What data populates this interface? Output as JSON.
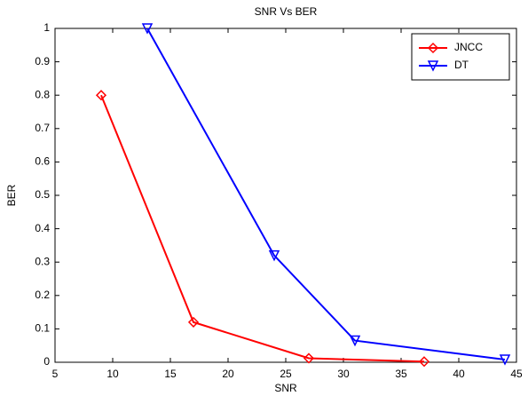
{
  "chart_data": {
    "type": "line",
    "title": "SNR Vs BER",
    "x_label": "SNR",
    "y_label": "BER",
    "series": [
      {
        "name": "JNCC",
        "color": "#ff0000",
        "marker": "diamond",
        "x": [
          9,
          17,
          27,
          37
        ],
        "values": [
          0.8,
          0.12,
          0.012,
          0.002
        ]
      },
      {
        "name": "DT",
        "color": "#0000ff",
        "marker": "triangle-down",
        "x": [
          13,
          24,
          31,
          44
        ],
        "values": [
          1,
          0.32,
          0.065,
          0.008
        ]
      }
    ],
    "xlim": [
      5,
      45
    ],
    "xticks": [
      5,
      10,
      15,
      20,
      25,
      30,
      35,
      40,
      45
    ],
    "ylim": [
      0,
      1
    ],
    "yticks": [
      0,
      0.1,
      0.2,
      0.3,
      0.4,
      0.5,
      0.6,
      0.7,
      0.8,
      0.9,
      1
    ],
    "grid": false,
    "legend": "northeast"
  }
}
